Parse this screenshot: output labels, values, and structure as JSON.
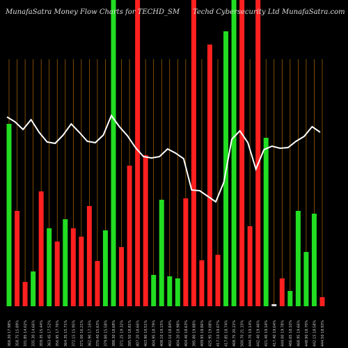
{
  "chart_data": {
    "type": "bar",
    "title": "MunafaSatra  Money Flow  Charts for TECHD_SM",
    "subtitle": "Techd Cybersecurity Ltd  MunafaSatra.com",
    "categories": [
      "366.30 17.98%",
      "358.75 15.89%",
      "331.85 14.02%",
      "335.30 14.66%",
      "359.35 15.44%",
      "363.45 17.52%",
      "356.95 17.76%",
      "364.35 15.71%",
      "372.15 15.95%",
      "371.00 16.21%",
      "362.90 17.16%",
      "370.40 15.63%",
      "379.80 15.58%",
      "388.30 18.68%",
      "371.25 19.32%",
      "395.50 18.81%",
      "407.20 18.66%",
      "403.90 19.51%",
      "404.95 18.79%",
      "408.10 19.15%",
      "402.10 18.84%",
      "404.20 18.98%",
      "404.40 18.63%",
      "395.80 19.88%",
      "409.95 18.86%",
      "425.95 19.08%",
      "417.10 19.07%",
      "417.85 18.74%",
      "468.75 20.22%",
      "500.70 21.33%",
      "444.70 19.14%",
      "442.40 19.46%",
      "421.40 19.16%",
      "417.40 19.04%",
      "444.00 19.78%",
      "466.65 18.10%",
      "468.95 19.66%",
      "448.90 18.70%",
      "442.15 18.58%",
      "444.50 18.93%"
    ],
    "values": [
      262,
      137,
      35,
      50,
      165,
      112,
      93,
      125,
      112,
      100,
      144,
      65,
      109,
      440,
      85,
      202,
      440,
      217,
      45,
      153,
      43,
      40,
      155,
      440,
      66,
      376,
      74,
      395,
      440,
      440,
      115,
      440,
      242,
      3,
      40,
      22,
      137,
      78,
      133,
      13
    ],
    "bar_colors": [
      "#22dd22",
      "#ff2020",
      "#ff2020",
      "#22dd22",
      "#ff2020",
      "#22dd22",
      "#ff2020",
      "#22dd22",
      "#ff2020",
      "#ff2020",
      "#ff2020",
      "#ff2020",
      "#22dd22",
      "#22dd22",
      "#ff2020",
      "#ff2020",
      "#ff2020",
      "#ff2020",
      "#22dd22",
      "#22dd22",
      "#22dd22",
      "#22dd22",
      "#ff2020",
      "#ff2020",
      "#ff2020",
      "#ff2020",
      "#ff2020",
      "#22dd22",
      "#22dd22",
      "#ff2020",
      "#ff2020",
      "#ff2020",
      "#22dd22",
      "#dddddd",
      "#ff2020",
      "#22dd22",
      "#22dd22",
      "#22dd22",
      "#22dd22",
      "#ff2020"
    ],
    "line_values": [
      272,
      265,
      254,
      268,
      250,
      236,
      234,
      246,
      262,
      250,
      237,
      235,
      246,
      274,
      258,
      245,
      228,
      215,
      213,
      215,
      226,
      220,
      212,
      167,
      166,
      158,
      150,
      178,
      240,
      252,
      235,
      197,
      225,
      230,
      227,
      228,
      237,
      244,
      258,
      250
    ],
    "line_color": "#ffffff",
    "grid_color": "#b36b00"
  }
}
